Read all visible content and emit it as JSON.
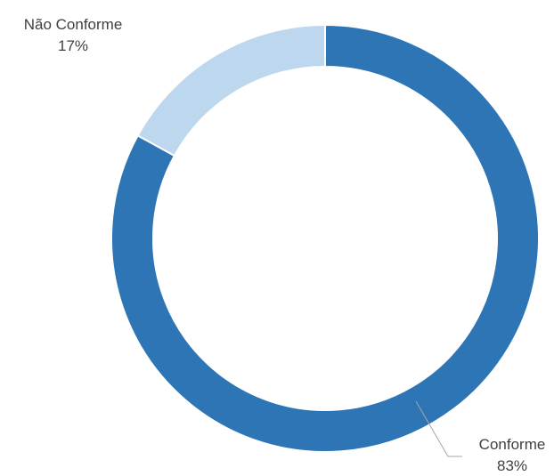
{
  "chart_data": {
    "type": "pie",
    "variant": "donut",
    "title": "",
    "slices": [
      {
        "label": "Conforme",
        "value": 83,
        "value_label": "83%",
        "color": "#2E75B6"
      },
      {
        "label": "Não Conforme",
        "value": 17,
        "value_label": "17%",
        "color": "#BDD7EE"
      }
    ],
    "start_angle_deg": 0,
    "direction": "clockwise",
    "legend": "none",
    "data_labels": "outside with leader lines"
  }
}
